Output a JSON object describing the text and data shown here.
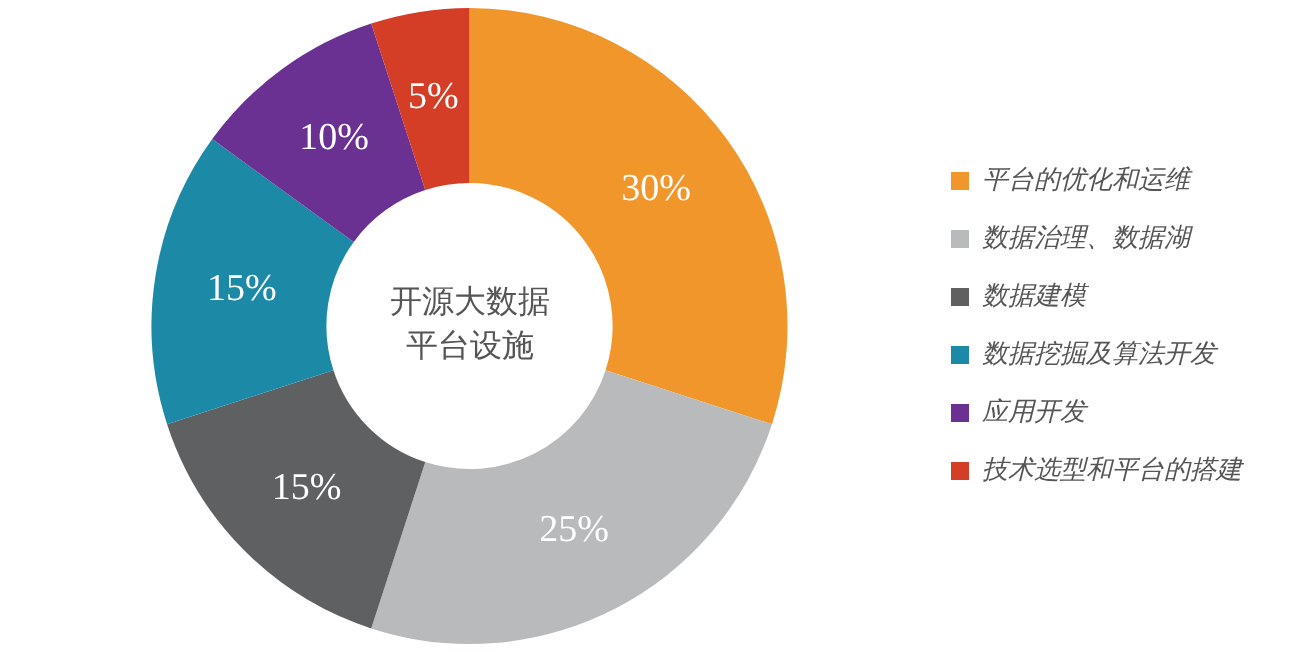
{
  "chart_data": {
    "type": "donut",
    "categories": [
      "平台的优化和运维",
      "数据治理、数据湖",
      "数据建模",
      "数据挖掘及算法开发",
      "应用开发",
      "技术选型和平台的搭建"
    ],
    "values": [
      30,
      25,
      15,
      15,
      10,
      5
    ],
    "value_labels": [
      "30%",
      "25%",
      "15%",
      "15%",
      "10%",
      "5%"
    ],
    "colors": [
      "#f0962a",
      "#b9babc",
      "#5f6062",
      "#1c8aa6",
      "#6b3192",
      "#d43d26"
    ],
    "annotations": [
      "开源大数据",
      "平台设施"
    ],
    "legend": "right"
  }
}
